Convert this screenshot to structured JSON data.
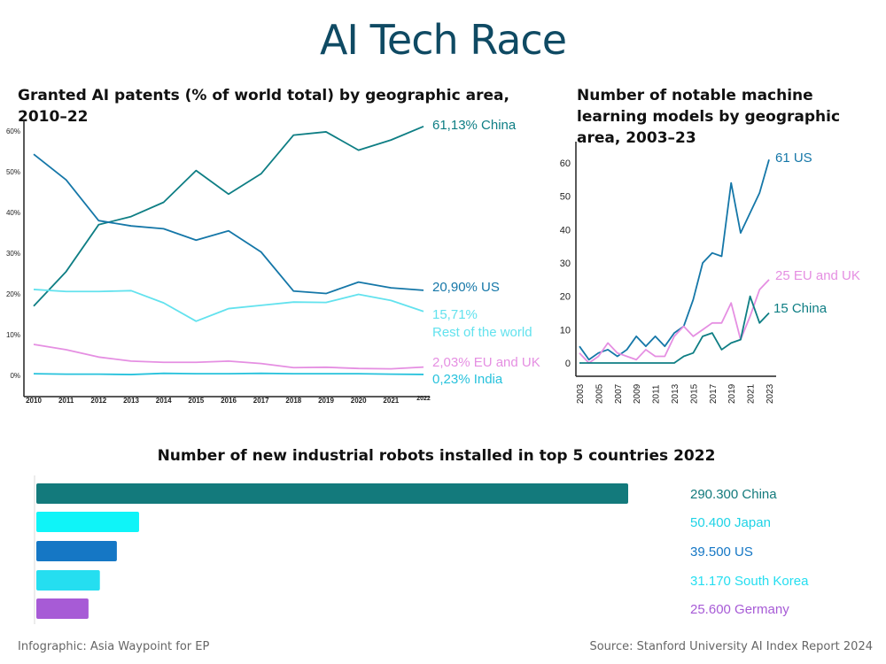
{
  "title": "AI Tech Race",
  "footer": {
    "left": "Infographic: Asia Waypoint for EP",
    "right": "Source: Stanford University AI Index Report 2024"
  },
  "chart_data": [
    {
      "id": "patents",
      "type": "line",
      "title": "Granted AI patents (% of world total) by geographic area, 2010–22",
      "x": [
        2010,
        2011,
        2012,
        2013,
        2014,
        2015,
        2016,
        2017,
        2018,
        2019,
        2020,
        2021,
        2022
      ],
      "ylim": [
        0,
        62
      ],
      "yticks": [
        "0%",
        "10%",
        "20%",
        "30%",
        "40%",
        "50%",
        "60%"
      ],
      "grid": false,
      "series": [
        {
          "name": "China",
          "label": "61,13% China",
          "color": "#0e7e84",
          "values": [
            17,
            25.5,
            37,
            39,
            42.5,
            50.3,
            44.5,
            49.5,
            59,
            59.8,
            55.3,
            57.8,
            61.13
          ]
        },
        {
          "name": "US",
          "label": "20,90% US",
          "color": "#1577a8",
          "values": [
            54.3,
            48,
            38,
            36.7,
            36,
            33.2,
            35.5,
            30.3,
            20.7,
            20.1,
            22.9,
            21.5,
            20.9
          ]
        },
        {
          "name": "Rest of the world",
          "label": "15,71%",
          "label2": "Rest of  the world",
          "color": "#63e2ee",
          "values": [
            21.1,
            20.6,
            20.6,
            20.8,
            17.8,
            13.3,
            16.4,
            17.2,
            18,
            17.9,
            19.9,
            18.4,
            15.71
          ]
        },
        {
          "name": "EU and UK",
          "label": "2,03% EU and UK",
          "color": "#e58fe2",
          "values": [
            7.6,
            6.3,
            4.5,
            3.5,
            3.2,
            3.2,
            3.5,
            2.9,
            1.9,
            2,
            1.7,
            1.6,
            2.03
          ]
        },
        {
          "name": "India",
          "label": "0,23% India",
          "color": "#27c2dc",
          "values": [
            0.4,
            0.3,
            0.3,
            0.2,
            0.5,
            0.4,
            0.4,
            0.5,
            0.4,
            0.4,
            0.4,
            0.3,
            0.23
          ]
        }
      ]
    },
    {
      "id": "ml_models",
      "type": "line",
      "title": "Number of notable machine learning models by geographic area, 2003–23",
      "x": [
        2003,
        2004,
        2005,
        2006,
        2007,
        2008,
        2009,
        2010,
        2011,
        2012,
        2013,
        2014,
        2015,
        2016,
        2017,
        2018,
        2019,
        2020,
        2021,
        2022,
        2023
      ],
      "xticks": [
        "2003",
        "2005",
        "2007",
        "2009",
        "2011",
        "2013",
        "2015",
        "2017",
        "2019",
        "2021",
        "2023"
      ],
      "yticks": [
        0,
        10,
        20,
        30,
        40,
        50,
        60
      ],
      "ylim": [
        -5,
        62
      ],
      "grid": false,
      "series": [
        {
          "name": "US",
          "label": "61 US",
          "color": "#1577a8",
          "values": [
            5,
            1,
            3,
            4,
            2,
            4,
            8,
            5,
            8,
            5,
            9,
            11,
            19,
            30,
            33,
            32,
            54,
            39,
            45,
            51,
            61
          ]
        },
        {
          "name": "EU and UK",
          "label": "25 EU and UK",
          "color": "#e58fe2",
          "values": [
            3,
            0,
            2,
            6,
            3,
            2,
            1,
            4,
            2,
            2,
            8,
            11,
            8,
            10,
            12,
            12,
            18,
            7,
            14,
            22,
            25
          ]
        },
        {
          "name": "China",
          "label": "15 China",
          "color": "#0e7e84",
          "values": [
            0,
            0,
            0,
            0,
            0,
            0,
            0,
            0,
            0,
            0,
            0,
            2,
            3,
            8,
            9,
            4,
            6,
            7,
            20,
            12,
            15
          ]
        }
      ]
    },
    {
      "id": "robots",
      "type": "bar",
      "title": "Number of new industrial robots installed  in top 5 countries 2022",
      "categories": [
        "China",
        "Japan",
        "US",
        "South Korea",
        "Germany"
      ],
      "values": [
        290300,
        50400,
        39500,
        31170,
        25600
      ],
      "labels": [
        "290.300 China",
        "50.400 Japan",
        "39.500 US",
        "31.170 South Korea",
        "25.600 Germany"
      ],
      "colors": [
        "#137a7c",
        "#0ff4f8",
        "#1577c5",
        "#25def0",
        "#a75bd6"
      ],
      "orientation": "horizontal"
    }
  ]
}
